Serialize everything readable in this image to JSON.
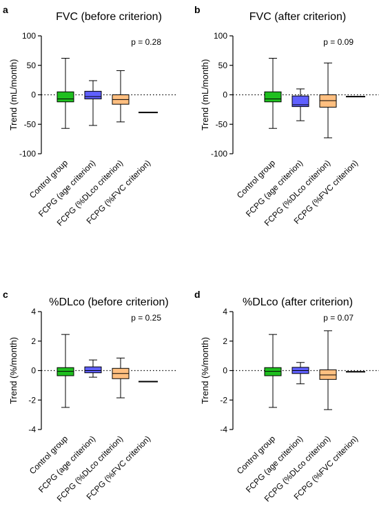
{
  "figure": {
    "colors": {
      "control": "#1fbf1f",
      "age": "#6060ff",
      "dlco": "#ffbf80",
      "fvc": "#000000"
    }
  },
  "chart_data": [
    {
      "type": "box",
      "panel": "a",
      "title": "FVC (before criterion)",
      "ylabel": "Trend (mL/month)",
      "xlabel": "",
      "ylim": [
        -100,
        100
      ],
      "yticks": [
        -100,
        -50,
        0,
        50,
        100
      ],
      "ytick_labels": [
        "-100",
        "-50",
        "0",
        "50",
        "100"
      ],
      "reference_line": 0,
      "annotation": "p = 0.28",
      "categories": [
        "Control group",
        "FCPG (age criterion)",
        "FCPG (%DLco criterion)",
        "FCPG (%FVC criterion)"
      ],
      "boxes": [
        {
          "min": -57,
          "q1": -12,
          "median": -7,
          "q3": 5,
          "max": 62,
          "color": "#1fbf1f"
        },
        {
          "min": -52,
          "q1": -7,
          "median": -3,
          "q3": 6,
          "max": 24,
          "color": "#6060ff"
        },
        {
          "min": -46,
          "q1": -16,
          "median": -8,
          "q3": 0,
          "max": 41,
          "color": "#ffbf80"
        },
        {
          "min": -30,
          "q1": -30,
          "median": -30,
          "q3": -30,
          "max": -30,
          "color": "#000000"
        }
      ]
    },
    {
      "type": "box",
      "panel": "b",
      "title": "FVC (after criterion)",
      "ylabel": "Trend (mL/month)",
      "xlabel": "",
      "ylim": [
        -100,
        100
      ],
      "yticks": [
        -100,
        -50,
        0,
        50,
        100
      ],
      "ytick_labels": [
        "-100",
        "-50",
        "0",
        "50",
        "100"
      ],
      "reference_line": 0,
      "annotation": "p = 0.09",
      "categories": [
        "Control group",
        "FCPG (age criterion)",
        "FCPG (%DLco criterion)",
        "FCPG (%FVC criterion)"
      ],
      "boxes": [
        {
          "min": -57,
          "q1": -12,
          "median": -7,
          "q3": 5,
          "max": 62,
          "color": "#1fbf1f"
        },
        {
          "min": -44,
          "q1": -20,
          "median": -17,
          "q3": -2,
          "max": 10,
          "color": "#6060ff"
        },
        {
          "min": -73,
          "q1": -21,
          "median": -10,
          "q3": 0,
          "max": 54,
          "color": "#ffbf80"
        },
        {
          "min": -3,
          "q1": -3,
          "median": -3,
          "q3": -3,
          "max": -3,
          "color": "#000000"
        }
      ]
    },
    {
      "type": "box",
      "panel": "c",
      "title": "%DLco (before criterion)",
      "ylabel": "Trend (%/month)",
      "xlabel": "",
      "ylim": [
        -4,
        4
      ],
      "yticks": [
        -4,
        -2,
        0,
        2,
        4
      ],
      "ytick_labels": [
        "-4",
        "-2",
        "0",
        "2",
        "4"
      ],
      "reference_line": 0,
      "annotation": "p = 0.25",
      "categories": [
        "Control group",
        "FCPG (age criterion)",
        "FCPG (%DLco criterion)",
        "FCPG (%FVC criterion)"
      ],
      "boxes": [
        {
          "min": -2.5,
          "q1": -0.35,
          "median": -0.05,
          "q3": 0.2,
          "max": 2.45,
          "color": "#1fbf1f"
        },
        {
          "min": -0.45,
          "q1": -0.15,
          "median": 0.0,
          "q3": 0.25,
          "max": 0.72,
          "color": "#6060ff"
        },
        {
          "min": -1.85,
          "q1": -0.55,
          "median": -0.2,
          "q3": 0.15,
          "max": 0.85,
          "color": "#ffbf80"
        },
        {
          "min": -0.75,
          "q1": -0.75,
          "median": -0.75,
          "q3": -0.75,
          "max": -0.75,
          "color": "#000000"
        }
      ]
    },
    {
      "type": "box",
      "panel": "d",
      "title": "%DLco (after criterion)",
      "ylabel": "Trend (%/month)",
      "xlabel": "",
      "ylim": [
        -4,
        4
      ],
      "yticks": [
        -4,
        -2,
        0,
        2,
        4
      ],
      "ytick_labels": [
        "-4",
        "-2",
        "0",
        "2",
        "4"
      ],
      "reference_line": 0,
      "annotation": "p = 0.07",
      "categories": [
        "Control group",
        "FCPG (age criterion)",
        "FCPG (%DLco criterion)",
        "FCPG (%FVC criterion)"
      ],
      "boxes": [
        {
          "min": -2.5,
          "q1": -0.35,
          "median": -0.05,
          "q3": 0.2,
          "max": 2.45,
          "color": "#1fbf1f"
        },
        {
          "min": -0.9,
          "q1": -0.2,
          "median": 0.0,
          "q3": 0.22,
          "max": 0.55,
          "color": "#6060ff"
        },
        {
          "min": -2.65,
          "q1": -0.6,
          "median": -0.3,
          "q3": 0.05,
          "max": 2.7,
          "color": "#ffbf80"
        },
        {
          "min": -0.08,
          "q1": -0.08,
          "median": -0.08,
          "q3": -0.08,
          "max": -0.08,
          "color": "#000000"
        }
      ]
    }
  ]
}
